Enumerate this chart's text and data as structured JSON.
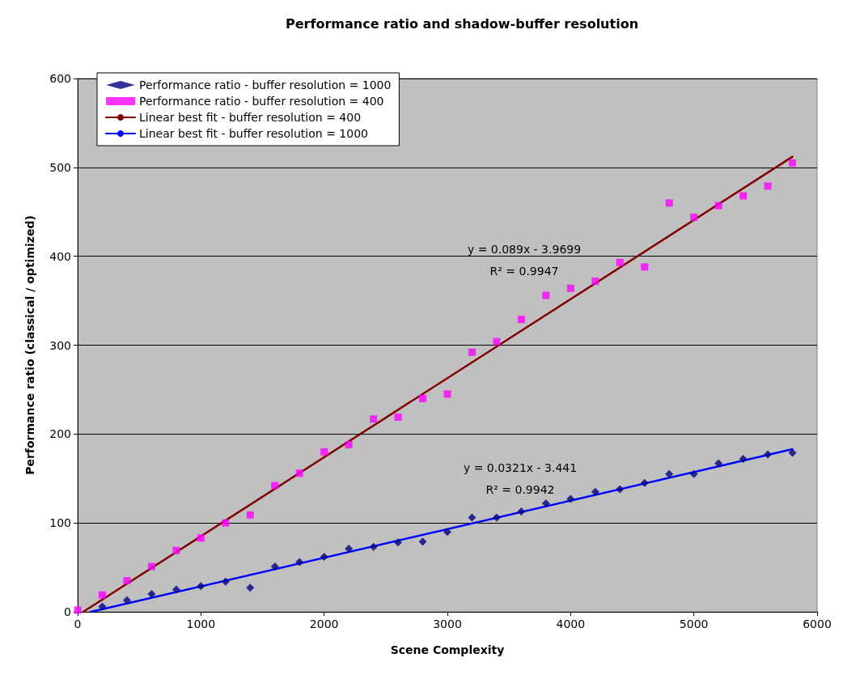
{
  "chart_data": {
    "type": "scatter",
    "title": "Performance ratio and shadow-buffer resolution",
    "xlabel": "Scene Complexity",
    "ylabel": "Performance ratio (classical / optimized)",
    "x": [
      0,
      200,
      400,
      600,
      800,
      1000,
      1200,
      1400,
      1600,
      1800,
      2000,
      2200,
      2400,
      2600,
      2800,
      3000,
      3200,
      3400,
      3600,
      3800,
      4000,
      4200,
      4400,
      4600,
      4800,
      5000,
      5200,
      5400,
      5600,
      5800
    ],
    "series": [
      {
        "name": "Performance ratio - buffer resolution = 1000",
        "color": "#000080",
        "marker": "diamond",
        "values": [
          null,
          6,
          13,
          20,
          25,
          29,
          34,
          27,
          51,
          56,
          62,
          71,
          73,
          78,
          79,
          90,
          106,
          106,
          113,
          122,
          127,
          135,
          138,
          145,
          155,
          155,
          167,
          172,
          177,
          179
        ]
      },
      {
        "name": "Performance ratio - buffer resolution = 400",
        "color": "#ff00ff",
        "marker": "square",
        "values": [
          2,
          19,
          35,
          51,
          69,
          83,
          100,
          109,
          142,
          156,
          180,
          188,
          217,
          219,
          240,
          245,
          292,
          304,
          329,
          356,
          364,
          372,
          393,
          388,
          460,
          444,
          457,
          468,
          479,
          505
        ]
      },
      {
        "name": "Linear best fit - buffer resolution = 400",
        "type": "line",
        "color": "#800000",
        "marker": "none",
        "x": [
          45,
          5800
        ],
        "values": [
          0,
          512
        ]
      },
      {
        "name": "Linear best fit - buffer resolution = 1000",
        "type": "line",
        "color": "#0000ff",
        "marker": "none",
        "x": [
          107,
          5800
        ],
        "values": [
          0,
          183
        ]
      }
    ],
    "annotations": [
      "y = 0.089x - 3.9699",
      "R² = 0.9947",
      "y = 0.0321x - 3.441",
      "R² = 0.9942"
    ],
    "xlim": [
      0,
      6000
    ],
    "xticks": [
      0,
      1000,
      2000,
      3000,
      4000,
      5000,
      6000
    ],
    "ylim": [
      0,
      600
    ],
    "yticks": [
      0,
      100,
      200,
      300,
      400,
      500,
      600
    ],
    "grid": "y",
    "legend": "top left"
  }
}
